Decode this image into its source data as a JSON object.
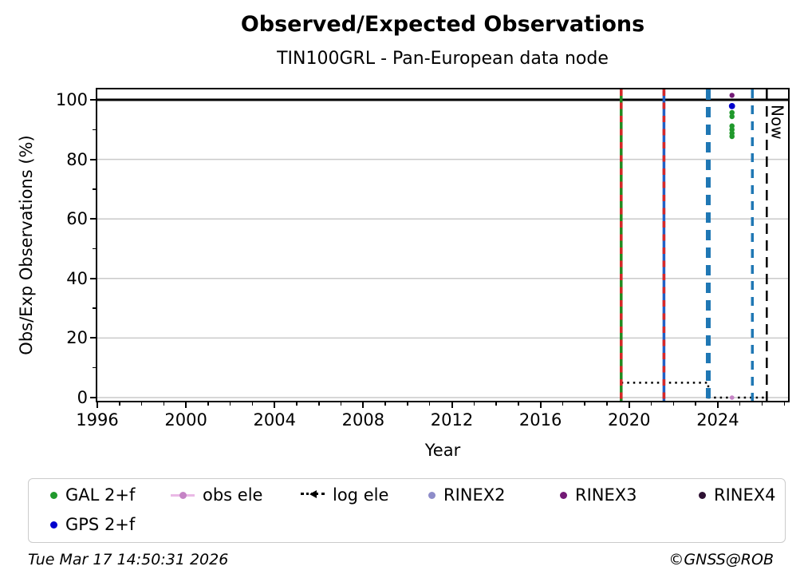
{
  "header": {
    "title": "Observed/Expected Observations",
    "subtitle": "TIN100GRL - Pan-European data node"
  },
  "chart_data": {
    "type": "scatter",
    "title": "Observed/Expected Observations",
    "subtitle": "TIN100GRL - Pan-European data node",
    "xlabel": "Year",
    "ylabel": "Obs/Exp Observations (%)",
    "xlim": [
      1996,
      2027.17
    ],
    "ylim": [
      -1.07,
      103.49
    ],
    "xticks": [
      1996,
      2000,
      2004,
      2008,
      2012,
      2016,
      2020,
      2024
    ],
    "yticks": [
      0,
      20,
      40,
      60,
      80,
      100
    ],
    "x_minor_step": 1,
    "y_minor_ticks": [
      10,
      30,
      50,
      70,
      90
    ],
    "grid": "horizontal",
    "grid_color": "#cacaca",
    "hline": {
      "y": 100,
      "color": "#000000",
      "width": 3
    },
    "series": [
      {
        "name": "GAL 2+f",
        "color": "#20992c",
        "marker_r": 3.3,
        "points": [
          [
            2024.64,
            95.7
          ],
          [
            2024.64,
            94.4
          ],
          [
            2024.64,
            91.2
          ],
          [
            2024.64,
            90.0
          ],
          [
            2024.64,
            88.8
          ],
          [
            2024.64,
            87.7
          ]
        ]
      },
      {
        "name": "GPS 2+f",
        "color": "#0000cd",
        "marker_r": 3.9,
        "points": [
          [
            2024.64,
            97.9
          ]
        ]
      },
      {
        "name": "RINEX3",
        "color": "#731a75",
        "marker_r": 3.2,
        "points": [
          [
            2024.64,
            101.5
          ]
        ]
      },
      {
        "name": "obs ele",
        "color": "#c583c5",
        "marker_r": 2.8,
        "points": [
          [
            2024.64,
            0
          ]
        ]
      }
    ],
    "log_ele_line": {
      "name": "log ele",
      "color": "#000000",
      "width": 2.5,
      "dash": [
        2.5,
        5
      ],
      "path": [
        [
          2019.64,
          5
        ],
        [
          2023.57,
          5
        ],
        [
          2023.57,
          0
        ],
        [
          2026.21,
          0
        ]
      ]
    },
    "vlines": [
      {
        "x": 2019.64,
        "color": "#1f8b1f",
        "width": 3.5,
        "overlay": {
          "color": "#d62728",
          "width": 3.5,
          "dash": [
            8,
            8.5
          ]
        }
      },
      {
        "x": 2021.57,
        "color": "#2160c4",
        "width": 3.5,
        "overlay": {
          "color": "#d62728",
          "width": 3.5,
          "dash": [
            8,
            8.5
          ]
        }
      },
      {
        "x": 2023.57,
        "color": "#1f77b4",
        "width": 6,
        "dash": [
          13,
          9
        ]
      },
      {
        "x": 2025.56,
        "color": "#1f77b4",
        "width": 3.5,
        "dash": [
          11,
          9
        ]
      },
      {
        "x": 2026.21,
        "color": "#000000",
        "width": 2.5,
        "dash": [
          13,
          8
        ],
        "label": "Now"
      }
    ],
    "now_label": "Now",
    "legend_position": "bottom"
  },
  "legend": {
    "items": [
      {
        "label": "GAL 2+f",
        "marker": "dot",
        "color": "#20992c",
        "row": 1
      },
      {
        "label": "obs ele",
        "marker": "line-dot",
        "color": "#c583c5",
        "line_color": "#eab9e6",
        "row": 1
      },
      {
        "label": "log ele",
        "marker": "dotted-arrow",
        "color": "#000000",
        "row": 1
      },
      {
        "label": "RINEX2",
        "marker": "dot",
        "color": "#8e8cc9",
        "row": 1
      },
      {
        "label": "RINEX3",
        "marker": "dot",
        "color": "#731a75",
        "row": 1
      },
      {
        "label": "RINEX4",
        "marker": "dot",
        "color": "#2e1133",
        "row": 1
      },
      {
        "label": "GPS 2+f",
        "marker": "dot",
        "color": "#0000cd",
        "row": 2
      }
    ]
  },
  "footer": {
    "timestamp": "Tue Mar 17 14:50:31 2026",
    "copyright": "©GNSS@ROB"
  }
}
